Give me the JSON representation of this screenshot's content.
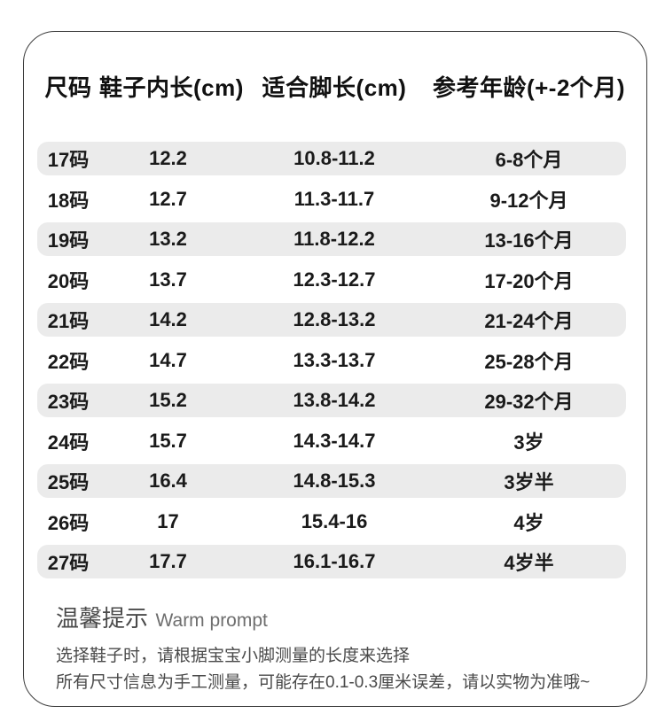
{
  "table": {
    "headers": [
      "尺码",
      "鞋子内长(cm)",
      "适合脚长(cm)",
      "参考年龄(+-2个月)"
    ],
    "rows": [
      {
        "size": "17码",
        "inner_length": "12.2",
        "foot_length": "10.8-11.2",
        "age": "6-8个月"
      },
      {
        "size": "18码",
        "inner_length": "12.7",
        "foot_length": "11.3-11.7",
        "age": "9-12个月"
      },
      {
        "size": "19码",
        "inner_length": "13.2",
        "foot_length": "11.8-12.2",
        "age": "13-16个月"
      },
      {
        "size": "20码",
        "inner_length": "13.7",
        "foot_length": "12.3-12.7",
        "age": "17-20个月"
      },
      {
        "size": "21码",
        "inner_length": "14.2",
        "foot_length": "12.8-13.2",
        "age": "21-24个月"
      },
      {
        "size": "22码",
        "inner_length": "14.7",
        "foot_length": "13.3-13.7",
        "age": "25-28个月"
      },
      {
        "size": "23码",
        "inner_length": "15.2",
        "foot_length": "13.8-14.2",
        "age": "29-32个月"
      },
      {
        "size": "24码",
        "inner_length": "15.7",
        "foot_length": "14.3-14.7",
        "age": "3岁"
      },
      {
        "size": "25码",
        "inner_length": "16.4",
        "foot_length": "14.8-15.3",
        "age": "3岁半"
      },
      {
        "size": "26码",
        "inner_length": "17",
        "foot_length": "15.4-16",
        "age": "4岁"
      },
      {
        "size": "27码",
        "inner_length": "17.7",
        "foot_length": "16.1-16.7",
        "age": "4岁半"
      }
    ]
  },
  "footer": {
    "title_cn": "温馨提示",
    "title_en": "Warm prompt",
    "lines": [
      "选择鞋子时，请根据宝宝小脚测量的长度来选择",
      "所有尺寸信息为手工测量，可能存在0.1-0.3厘米误差，请以实物为准哦~"
    ]
  },
  "colors": {
    "row_alt_background": "#ebebeb",
    "card_border": "#3d3d3d",
    "table_text": "#1a1a1a",
    "footer_text": "#4a4a4a"
  }
}
